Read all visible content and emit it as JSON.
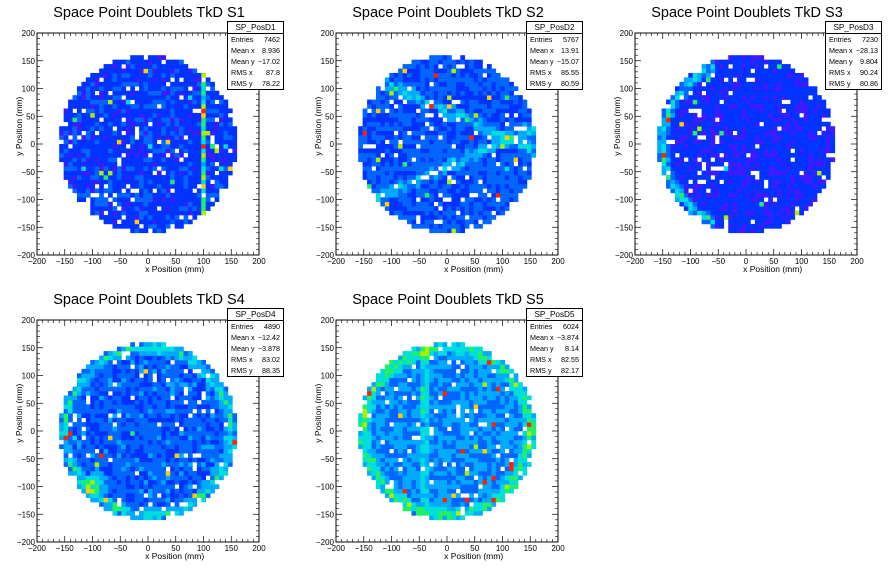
{
  "chart_data": [
    {
      "type": "heatmap",
      "title": "Space Point Doublets TkD S1",
      "xlabel": "x Position (mm)",
      "ylabel": "y Position (mm)",
      "xlim": [
        -200,
        200
      ],
      "ylim": [
        -200,
        200
      ],
      "xticks": [
        -200,
        -150,
        -100,
        -50,
        0,
        50,
        100,
        150,
        200
      ],
      "yticks": [
        -200,
        -150,
        -100,
        -50,
        0,
        50,
        100,
        150,
        200
      ],
      "bin_size_mm": 8,
      "fiducial_radius_mm": 160,
      "stats": {
        "name": "SP_PosD1",
        "rows": [
          {
            "label": "Entries",
            "value": "7462"
          },
          {
            "label": "Mean x",
            "value": "8.936"
          },
          {
            "label": "Mean y",
            "value": "−17.02"
          },
          {
            "label": "RMS x",
            "value": "87.8"
          },
          {
            "label": "RMS y",
            "value": "78.22"
          }
        ]
      }
    },
    {
      "type": "heatmap",
      "title": "Space Point Doublets TkD S2",
      "xlabel": "x Position (mm)",
      "ylabel": "y Position (mm)",
      "xlim": [
        -200,
        200
      ],
      "ylim": [
        -200,
        200
      ],
      "xticks": [
        -200,
        -150,
        -100,
        -50,
        0,
        50,
        100,
        150,
        200
      ],
      "yticks": [
        -200,
        -150,
        -100,
        -50,
        0,
        50,
        100,
        150,
        200
      ],
      "bin_size_mm": 8,
      "fiducial_radius_mm": 160,
      "stats": {
        "name": "SP_PosD2",
        "rows": [
          {
            "label": "Entries",
            "value": "5767"
          },
          {
            "label": "Mean x",
            "value": "13.91"
          },
          {
            "label": "Mean y",
            "value": "−15.07"
          },
          {
            "label": "RMS x",
            "value": "85.55"
          },
          {
            "label": "RMS y",
            "value": "80.59"
          }
        ]
      }
    },
    {
      "type": "heatmap",
      "title": "Space Point Doublets TkD S3",
      "xlabel": "x Position (mm)",
      "ylabel": "y Position (mm)",
      "xlim": [
        -200,
        200
      ],
      "ylim": [
        -200,
        200
      ],
      "xticks": [
        -200,
        -150,
        -100,
        -50,
        0,
        50,
        100,
        150,
        200
      ],
      "yticks": [
        -200,
        -150,
        -100,
        -50,
        0,
        50,
        100,
        150,
        200
      ],
      "bin_size_mm": 8,
      "fiducial_radius_mm": 160,
      "stats": {
        "name": "SP_PosD3",
        "rows": [
          {
            "label": "Entries",
            "value": "7230"
          },
          {
            "label": "Mean x",
            "value": "−28.13"
          },
          {
            "label": "Mean y",
            "value": "9.804"
          },
          {
            "label": "RMS x",
            "value": "90.24"
          },
          {
            "label": "RMS y",
            "value": "80.86"
          }
        ]
      }
    },
    {
      "type": "heatmap",
      "title": "Space Point Doublets TkD S4",
      "xlabel": "x Position (mm)",
      "ylabel": "y Position (mm)",
      "xlim": [
        -200,
        200
      ],
      "ylim": [
        -200,
        200
      ],
      "xticks": [
        -200,
        -150,
        -100,
        -50,
        0,
        50,
        100,
        150,
        200
      ],
      "yticks": [
        -200,
        -150,
        -100,
        -50,
        0,
        50,
        100,
        150,
        200
      ],
      "bin_size_mm": 8,
      "fiducial_radius_mm": 160,
      "stats": {
        "name": "SP_PosD4",
        "rows": [
          {
            "label": "Entries",
            "value": "4890"
          },
          {
            "label": "Mean x",
            "value": "−12.42"
          },
          {
            "label": "Mean y",
            "value": "−3.878"
          },
          {
            "label": "RMS x",
            "value": "83.02"
          },
          {
            "label": "RMS y",
            "value": "88.35"
          }
        ]
      }
    },
    {
      "type": "heatmap",
      "title": "Space Point Doublets TkD S5",
      "xlabel": "x Position (mm)",
      "ylabel": "y Position (mm)",
      "xlim": [
        -200,
        200
      ],
      "ylim": [
        -200,
        200
      ],
      "xticks": [
        -200,
        -150,
        -100,
        -50,
        0,
        50,
        100,
        150,
        200
      ],
      "yticks": [
        -200,
        -150,
        -100,
        -50,
        0,
        50,
        100,
        150,
        200
      ],
      "bin_size_mm": 8,
      "fiducial_radius_mm": 160,
      "stats": {
        "name": "SP_PosD5",
        "rows": [
          {
            "label": "Entries",
            "value": "6024"
          },
          {
            "label": "Mean x",
            "value": "−3.874"
          },
          {
            "label": "Mean y",
            "value": "8.14"
          },
          {
            "label": "RMS x",
            "value": "82.55"
          },
          {
            "label": "RMS y",
            "value": "82.17"
          }
        ]
      }
    }
  ],
  "palette": [
    "#6a00ff",
    "#3d1aff",
    "#0033ff",
    "#0066ff",
    "#00aaff",
    "#00dddd",
    "#22ee66",
    "#aaee00",
    "#ffcc00",
    "#ff2200"
  ]
}
